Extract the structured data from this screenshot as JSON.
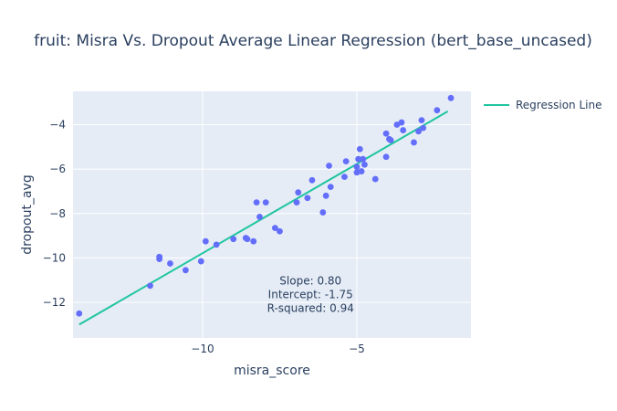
{
  "chart_data": {
    "type": "scatter",
    "title": "fruit: Misra Vs. Dropout Average Linear Regression (bert_base_uncased)",
    "xlabel": "misra_score",
    "ylabel": "dropout_avg",
    "xlim": [
      -14.2,
      -1.3
    ],
    "ylim": [
      -13.6,
      -2.5
    ],
    "xticks": [
      -10,
      -5
    ],
    "yticks": [
      -12,
      -10,
      -8,
      -6,
      -4
    ],
    "grid": true,
    "legend": {
      "position": "top-right",
      "entries": [
        "Regression Line"
      ]
    },
    "series": [
      {
        "type": "markers",
        "color": "#636efa",
        "points": [
          [
            -14.0,
            -12.5
          ],
          [
            -11.7,
            -11.25
          ],
          [
            -11.4,
            -9.95
          ],
          [
            -11.4,
            -10.05
          ],
          [
            -11.05,
            -10.25
          ],
          [
            -10.55,
            -10.55
          ],
          [
            -10.05,
            -10.15
          ],
          [
            -9.9,
            -9.25
          ],
          [
            -9.55,
            -9.4
          ],
          [
            -9.0,
            -9.15
          ],
          [
            -8.6,
            -9.1
          ],
          [
            -8.55,
            -9.15
          ],
          [
            -8.35,
            -9.25
          ],
          [
            -8.25,
            -7.5
          ],
          [
            -8.15,
            -8.15
          ],
          [
            -7.95,
            -7.5
          ],
          [
            -7.65,
            -8.65
          ],
          [
            -7.5,
            -8.8
          ],
          [
            -6.95,
            -7.5
          ],
          [
            -6.9,
            -7.05
          ],
          [
            -6.6,
            -7.3
          ],
          [
            -6.45,
            -6.5
          ],
          [
            -6.1,
            -7.95
          ],
          [
            -6.0,
            -7.2
          ],
          [
            -5.9,
            -5.85
          ],
          [
            -5.85,
            -6.8
          ],
          [
            -5.4,
            -6.35
          ],
          [
            -5.35,
            -5.65
          ],
          [
            -5.0,
            -5.9
          ],
          [
            -5.0,
            -6.15
          ],
          [
            -4.95,
            -5.55
          ],
          [
            -4.9,
            -5.1
          ],
          [
            -4.85,
            -6.1
          ],
          [
            -4.8,
            -5.55
          ],
          [
            -4.75,
            -5.8
          ],
          [
            -4.4,
            -6.45
          ],
          [
            -4.05,
            -5.45
          ],
          [
            -4.05,
            -4.4
          ],
          [
            -3.95,
            -4.65
          ],
          [
            -3.9,
            -4.7
          ],
          [
            -3.7,
            -4.0
          ],
          [
            -3.55,
            -3.9
          ],
          [
            -3.5,
            -4.25
          ],
          [
            -3.15,
            -4.8
          ],
          [
            -3.0,
            -4.3
          ],
          [
            -2.9,
            -3.8
          ],
          [
            -2.85,
            -4.15
          ],
          [
            -2.4,
            -3.35
          ],
          [
            -1.95,
            -2.8
          ]
        ]
      },
      {
        "name": "Regression Line",
        "type": "line",
        "color": "#1fc5a0",
        "x": [
          -14.0,
          -2.05
        ],
        "y": [
          -13.0,
          -3.4
        ]
      }
    ],
    "annotation": {
      "lines": [
        "Slope: 0.80",
        "Intercept: -1.75",
        "R-squared: 0.94"
      ],
      "x": -6.5,
      "y": -11.2
    }
  }
}
